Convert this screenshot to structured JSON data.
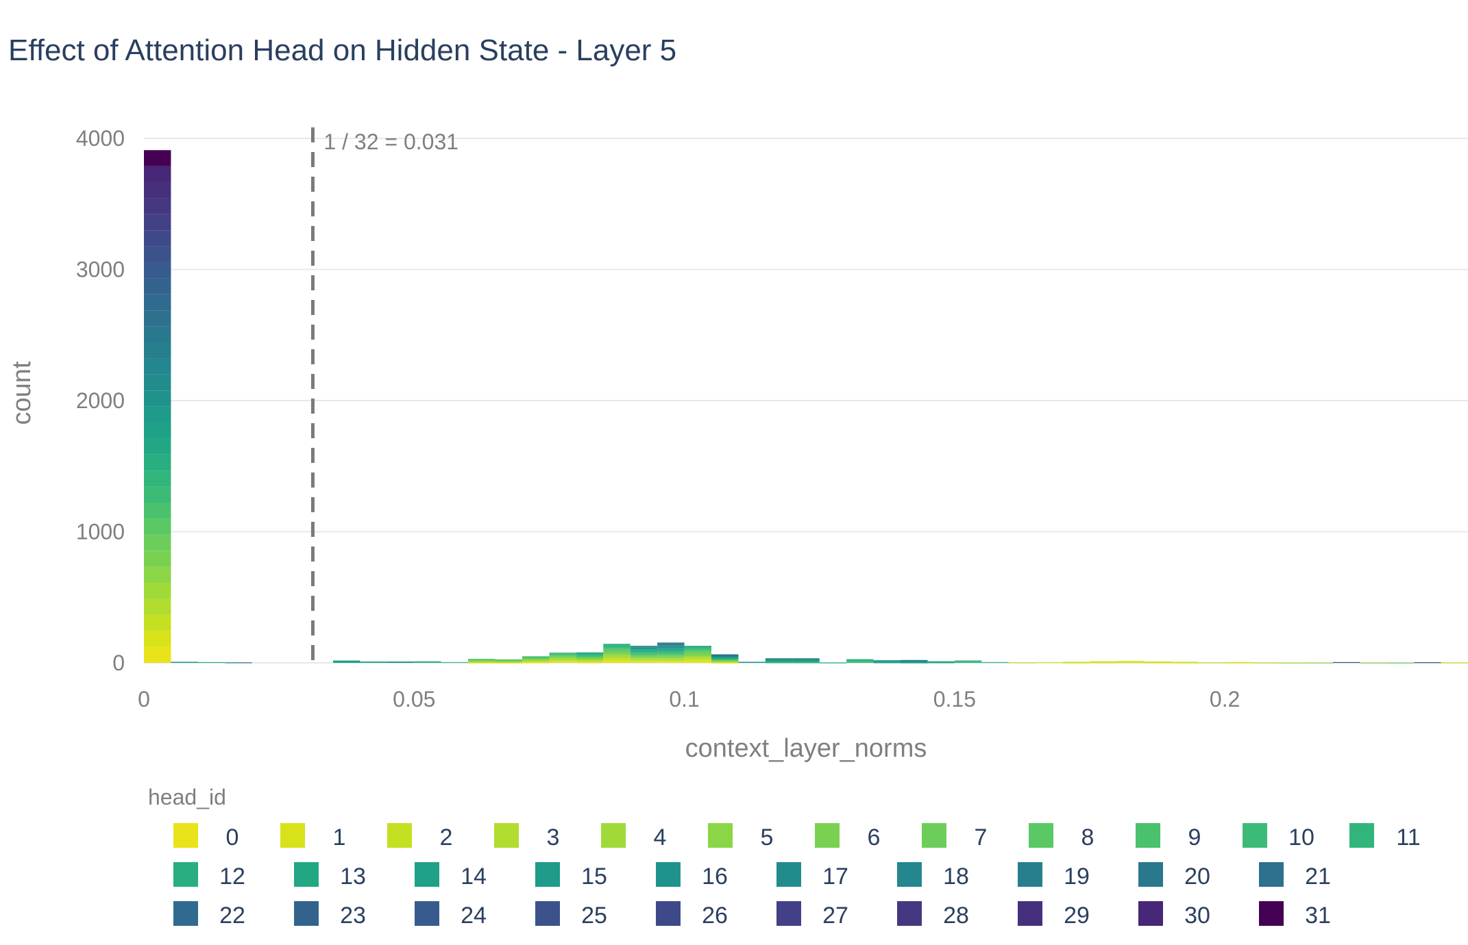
{
  "chart_data": {
    "type": "bar",
    "subtype": "stacked-histogram",
    "title": "Effect of Attention Head on Hidden State - Layer 5",
    "xlabel": "context_layer_norms",
    "ylabel": "count",
    "x_ticks": [
      0,
      0.05,
      0.1,
      0.15,
      0.2
    ],
    "x_tick_labels": [
      "0",
      "0.05",
      "0.1",
      "0.15",
      "0.2"
    ],
    "y_ticks": [
      0,
      1000,
      2000,
      3000,
      4000
    ],
    "y_tick_labels": [
      "0",
      "1000",
      "2000",
      "3000",
      "4000"
    ],
    "xlim": [
      0,
      0.245
    ],
    "ylim": [
      0,
      4000
    ],
    "bin_width": 0.005,
    "grid": true,
    "legend": {
      "title": "head_id",
      "placement": "bottom",
      "entries": [
        "0",
        "1",
        "2",
        "3",
        "4",
        "5",
        "6",
        "7",
        "8",
        "9",
        "10",
        "11",
        "12",
        "13",
        "14",
        "15",
        "16",
        "17",
        "18",
        "19",
        "20",
        "21",
        "22",
        "23",
        "24",
        "25",
        "26",
        "27",
        "28",
        "29",
        "30",
        "31"
      ]
    },
    "colors": [
      "#e8e419",
      "#d8e219",
      "#c5e021",
      "#b0dd2f",
      "#a0da39",
      "#8bd646",
      "#7ad151",
      "#6ccd5a",
      "#5ac864",
      "#4ac16d",
      "#3bbb75",
      "#31b57b",
      "#28ae80",
      "#22a785",
      "#1fa187",
      "#1e9b8a",
      "#20928c",
      "#228c8d",
      "#24868e",
      "#277f8e",
      "#2a788e",
      "#2d718e",
      "#306a8e",
      "#33638d",
      "#375b8d",
      "#3b528b",
      "#3e4989",
      "#424086",
      "#453781",
      "#46307e",
      "#472777",
      "#440154"
    ],
    "annotation": {
      "x": 0.03125,
      "text": "1 / 32 = 0.031",
      "style": "dashed vertical line"
    },
    "bins": [
      {
        "x": 0.0025,
        "total": 3910
      },
      {
        "x": 0.0075,
        "total": 8,
        "head": 15
      },
      {
        "x": 0.0125,
        "total": 6,
        "head": 12
      },
      {
        "x": 0.0175,
        "total": 4,
        "head": 20
      },
      {
        "x": 0.0375,
        "total": 18,
        "head": 14
      },
      {
        "x": 0.0425,
        "total": 10,
        "head": 13
      },
      {
        "x": 0.0475,
        "total": 10,
        "head": 16
      },
      {
        "x": 0.0525,
        "total": 12,
        "head": 11
      },
      {
        "x": 0.0575,
        "total": 6,
        "head": 10
      },
      {
        "x": 0.0625,
        "total": 30,
        "heads": [
          0,
          1,
          2,
          3,
          4,
          5,
          6,
          7,
          8,
          9
        ]
      },
      {
        "x": 0.0675,
        "total": 26,
        "heads": [
          0,
          1,
          2,
          3,
          4,
          5,
          6,
          7,
          8,
          9
        ]
      },
      {
        "x": 0.0725,
        "total": 50,
        "heads": [
          0,
          1,
          2,
          3,
          4,
          5,
          6,
          7,
          8,
          9,
          10
        ]
      },
      {
        "x": 0.0775,
        "total": 78,
        "heads": [
          0,
          1,
          2,
          3,
          4,
          5,
          6,
          7,
          8,
          9,
          10,
          11
        ]
      },
      {
        "x": 0.0825,
        "total": 80,
        "heads": [
          0,
          1,
          2,
          3,
          4,
          5,
          6,
          7,
          8,
          9,
          10,
          11,
          12,
          13,
          14
        ]
      },
      {
        "x": 0.0875,
        "total": 145,
        "heads": [
          0,
          1,
          2,
          3,
          4,
          5,
          6,
          7,
          8,
          9,
          10,
          11,
          12
        ]
      },
      {
        "x": 0.0925,
        "total": 130,
        "heads": [
          0,
          1,
          2,
          3,
          4,
          5,
          6,
          7,
          8,
          9,
          10,
          11,
          12,
          13,
          14,
          15,
          16,
          17,
          18
        ]
      },
      {
        "x": 0.0975,
        "total": 155,
        "heads": [
          0,
          1,
          2,
          3,
          4,
          5,
          6,
          7,
          8,
          9,
          10,
          11,
          12,
          13,
          14,
          15,
          16,
          17,
          18,
          19,
          20,
          21
        ]
      },
      {
        "x": 0.1025,
        "total": 130,
        "heads": [
          0,
          1,
          2,
          3,
          4,
          5,
          6,
          7,
          8,
          9,
          10,
          11,
          12
        ]
      },
      {
        "x": 0.1075,
        "total": 65,
        "heads": [
          0,
          1,
          2,
          3,
          4,
          5,
          6,
          7,
          8,
          9,
          10,
          11,
          12,
          13,
          14,
          15,
          16,
          17,
          18,
          19,
          20,
          21,
          22
        ]
      },
      {
        "x": 0.1125,
        "total": 8,
        "head": 16
      },
      {
        "x": 0.1175,
        "total": 35,
        "heads": [
          10,
          11,
          12,
          13,
          14,
          15,
          16,
          17,
          18
        ]
      },
      {
        "x": 0.1225,
        "total": 35,
        "heads": [
          10,
          11,
          12,
          13,
          14,
          15,
          16,
          17,
          18
        ]
      },
      {
        "x": 0.1275,
        "total": 3,
        "head": 12
      },
      {
        "x": 0.1325,
        "total": 28,
        "heads": [
          10,
          11,
          12
        ]
      },
      {
        "x": 0.1375,
        "total": 20,
        "heads": [
          12,
          13,
          14,
          15,
          16
        ]
      },
      {
        "x": 0.1425,
        "total": 22,
        "heads": [
          12,
          13,
          14,
          15,
          16,
          17,
          18,
          19
        ]
      },
      {
        "x": 0.1475,
        "total": 12,
        "heads": [
          12,
          13,
          14
        ]
      },
      {
        "x": 0.1525,
        "total": 18,
        "heads": [
          10,
          11,
          12
        ]
      },
      {
        "x": 0.1575,
        "total": 6,
        "head": 11
      },
      {
        "x": 0.1625,
        "total": 4,
        "head": 2
      },
      {
        "x": 0.1675,
        "total": 6,
        "head": 1
      },
      {
        "x": 0.1725,
        "total": 8,
        "heads": [
          0,
          1,
          2
        ]
      },
      {
        "x": 0.1775,
        "total": 12,
        "heads": [
          0,
          1,
          2
        ]
      },
      {
        "x": 0.1825,
        "total": 14,
        "heads": [
          0,
          1,
          2
        ]
      },
      {
        "x": 0.1875,
        "total": 10,
        "heads": [
          0,
          1,
          2
        ]
      },
      {
        "x": 0.1925,
        "total": 8,
        "heads": [
          0,
          1,
          2
        ]
      },
      {
        "x": 0.1975,
        "total": 4,
        "head": 2
      },
      {
        "x": 0.2025,
        "total": 6,
        "heads": [
          0,
          1
        ]
      },
      {
        "x": 0.2075,
        "total": 3,
        "head": 3
      },
      {
        "x": 0.2125,
        "total": 2,
        "head": 4
      },
      {
        "x": 0.2175,
        "total": 2,
        "head": 5
      },
      {
        "x": 0.2225,
        "total": 6,
        "head": 25
      },
      {
        "x": 0.2275,
        "total": 2,
        "head": 6
      },
      {
        "x": 0.2325,
        "total": 2,
        "head": 7
      },
      {
        "x": 0.2375,
        "total": 5,
        "head": 25
      },
      {
        "x": 0.2425,
        "total": 3,
        "head": 2
      }
    ]
  }
}
